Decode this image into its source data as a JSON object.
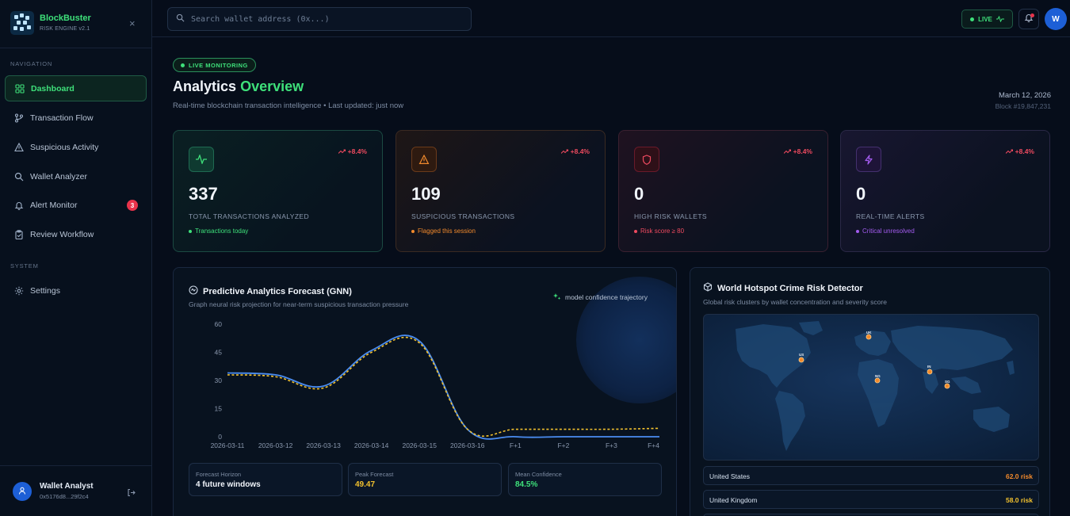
{
  "brand": {
    "title": "BlockBuster",
    "subtitle": "RISK ENGINE v2.1"
  },
  "sidebar": {
    "nav_section": "NAVIGATION",
    "system_section": "SYSTEM",
    "items": [
      {
        "label": "Dashboard",
        "icon": "grid-icon",
        "active": true
      },
      {
        "label": "Transaction Flow",
        "icon": "git-branch-icon"
      },
      {
        "label": "Suspicious Activity",
        "icon": "warning-triangle-icon"
      },
      {
        "label": "Wallet Analyzer",
        "icon": "search-icon"
      },
      {
        "label": "Alert Monitor",
        "icon": "bell-icon",
        "badge": "3"
      },
      {
        "label": "Review Workflow",
        "icon": "clipboard-check-icon"
      }
    ],
    "system_items": [
      {
        "label": "Settings",
        "icon": "gear-icon"
      }
    ],
    "user": {
      "name": "Wallet Analyst",
      "address": "0x5176d8...29f2c4"
    }
  },
  "topbar": {
    "search_placeholder": "Search wallet address (0x...)",
    "live_label": "LIVE",
    "avatar_initial": "W"
  },
  "header": {
    "badge": "LIVE MONITORING",
    "title_prefix": "Analytics",
    "title_highlight": "Overview",
    "subtitle": "Real-time blockchain transaction intelligence • Last updated: just now",
    "date": "March 12, 2026",
    "block": "Block #19,847,231"
  },
  "stats": [
    {
      "value": "337",
      "label": "TOTAL TRANSACTIONS ANALYZED",
      "change": "+8.4%",
      "note": "Transactions today",
      "color": "#3ee07a",
      "icon": "activity-icon"
    },
    {
      "value": "109",
      "label": "SUSPICIOUS TRANSACTIONS",
      "change": "+8.4%",
      "note": "Flagged this session",
      "color": "#f28a2c",
      "icon": "warning-triangle-icon"
    },
    {
      "value": "0",
      "label": "HIGH RISK WALLETS",
      "change": "+8.4%",
      "note": "Risk score ≥ 80",
      "color": "#ef4a5f",
      "icon": "shield-icon"
    },
    {
      "value": "0",
      "label": "REAL-TIME ALERTS",
      "change": "+8.4%",
      "note": "Critical unresolved",
      "color": "#a45cf0",
      "icon": "lightning-icon"
    }
  ],
  "forecast": {
    "title": "Predictive Analytics Forecast (GNN)",
    "subtitle": "Graph neural risk projection for near-term suspicious transaction pressure",
    "legend": "model confidence trajectory",
    "metrics": [
      {
        "label": "Forecast Horizon",
        "value": "4 future windows",
        "color": "#f1f5fb"
      },
      {
        "label": "Peak Forecast",
        "value": "49.47",
        "color": "#f2c12e"
      },
      {
        "label": "Mean Confidence",
        "value": "84.5%",
        "color": "#3ee07a"
      }
    ]
  },
  "chart_data": {
    "type": "line",
    "x": [
      "2026-03-11",
      "2026-03-12",
      "2026-03-13",
      "2026-03-14",
      "2026-03-15",
      "2026-03-16",
      "F+1",
      "F+2",
      "F+3",
      "F+4"
    ],
    "yticks": [
      0,
      15,
      30,
      45,
      60
    ],
    "ylim": [
      0,
      60
    ],
    "series": [
      {
        "name": "",
        "color": "#4a8cf0",
        "style": "solid",
        "values": [
          34,
          33,
          27,
          46,
          51,
          4,
          0,
          0,
          0,
          0
        ]
      },
      {
        "name": "model confidence trajectory",
        "color": "#f2c12e",
        "style": "dashed",
        "values": [
          33,
          32,
          26,
          45,
          50,
          4,
          4,
          4,
          4,
          4.5
        ]
      }
    ]
  },
  "hotspot": {
    "title": "World Hotspot Crime Risk Detector",
    "subtitle": "Global risk clusters by wallet concentration and severity score",
    "markers": [
      {
        "code": "UK"
      },
      {
        "code": "US"
      },
      {
        "code": "NG"
      },
      {
        "code": "IN"
      },
      {
        "code": "SG"
      }
    ],
    "rows": [
      {
        "country": "United States",
        "risk": "62.0 risk",
        "color": "#f28a2c"
      },
      {
        "country": "United Kingdom",
        "risk": "58.0 risk",
        "color": "#f2c12e"
      }
    ]
  }
}
